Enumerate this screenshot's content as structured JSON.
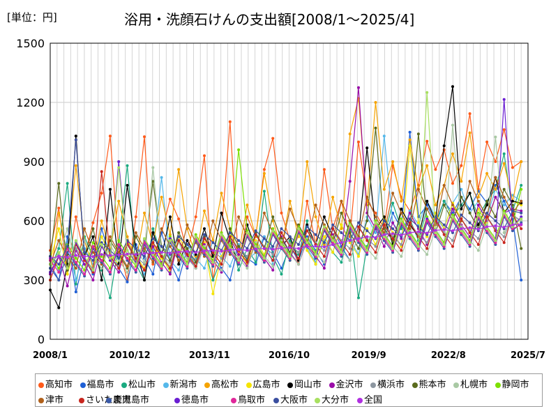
{
  "unit_label": "[単位：円]",
  "chart_data": {
    "type": "line",
    "title": "浴用・洗顔石けんの支出額[2008/1～2025/4]",
    "xlabel": "",
    "ylabel": "",
    "ylim": [
      0,
      1500
    ],
    "yticks": [
      "0",
      "300",
      "600",
      "900",
      "1200",
      "1500"
    ],
    "xticks": [
      "2008/1",
      "2010/12",
      "2013/11",
      "2016/10",
      "2019/9",
      "2022/8",
      "2025/7"
    ],
    "x_range": [
      "2008/1",
      "2025/7"
    ],
    "data_end": "2025/4",
    "grid": true,
    "legend_position": "bottom",
    "series": [
      {
        "name": "高知市",
        "color": "#FF5A1A",
        "values": [
          450,
          665,
          330,
          620,
          420,
          590,
          740,
          1030,
          460,
          300,
          620,
          1026,
          380,
          540,
          710,
          610,
          440,
          620,
          930,
          300,
          540,
          1102,
          380,
          620,
          520,
          860,
          1018,
          640,
          500,
          380,
          700,
          480,
          860,
          560,
          700,
          520,
          1000,
          700,
          640,
          560,
          880,
          720,
          650,
          780,
          1003,
          860,
          960,
          790,
          880,
          1143,
          760,
          1000,
          900,
          1062,
          870,
          900
        ]
      },
      {
        "name": "福島市",
        "color": "#1E5FD6",
        "values": [
          380,
          300,
          520,
          240,
          410,
          330,
          560,
          420,
          360,
          290,
          480,
          410,
          330,
          540,
          390,
          300,
          460,
          370,
          520,
          420,
          360,
          300,
          480,
          410,
          380,
          520,
          440,
          360,
          470,
          400,
          520,
          450,
          380,
          560,
          470,
          400,
          530,
          460,
          590,
          500,
          640,
          560,
          1049,
          620,
          680,
          590,
          700,
          640,
          720,
          660,
          750,
          690,
          780,
          700,
          610,
          300
        ]
      },
      {
        "name": "松山市",
        "color": "#1AAA80",
        "values": [
          360,
          460,
          790,
          280,
          520,
          420,
          350,
          210,
          480,
          880,
          380,
          300,
          560,
          430,
          340,
          500,
          420,
          360,
          470,
          300,
          410,
          520,
          350,
          460,
          390,
          750,
          420,
          330,
          500,
          430,
          600,
          380,
          520,
          440,
          390,
          560,
          210,
          470,
          600,
          520,
          690,
          560,
          610,
          500,
          660,
          580,
          700,
          620,
          680,
          740,
          620,
          700,
          760,
          940,
          650,
          780
        ]
      },
      {
        "name": "新潟市",
        "color": "#55B8EA",
        "values": [
          420,
          350,
          500,
          300,
          460,
          380,
          520,
          440,
          370,
          480,
          400,
          330,
          450,
          820,
          400,
          350,
          480,
          410,
          360,
          500,
          420,
          370,
          480,
          400,
          440,
          520,
          380,
          460,
          410,
          540,
          460,
          390,
          500,
          440,
          580,
          500,
          430,
          620,
          540,
          1030,
          590,
          530,
          650,
          580,
          700,
          620,
          560,
          690,
          760,
          640,
          700,
          620,
          760,
          680,
          730,
          700
        ]
      },
      {
        "name": "高松市",
        "color": "#F5A300",
        "values": [
          300,
          640,
          420,
          880,
          500,
          360,
          600,
          450,
          700,
          520,
          390,
          640,
          480,
          720,
          530,
          860,
          560,
          420,
          650,
          500,
          740,
          560,
          430,
          680,
          520,
          840,
          600,
          460,
          700,
          520,
          900,
          620,
          480,
          720,
          560,
          1040,
          1220,
          680,
          1200,
          760,
          900,
          700,
          1010,
          760,
          880,
          680,
          780,
          940,
          800,
          1046,
          720,
          840,
          760,
          890,
          700,
          900
        ]
      },
      {
        "name": "広島市",
        "color": "#F5E400",
        "values": [
          400,
          560,
          330,
          480,
          410,
          350,
          520,
          430,
          380,
          500,
          420,
          360,
          480,
          410,
          350,
          520,
          440,
          370,
          490,
          230,
          420,
          540,
          450,
          380,
          500,
          430,
          560,
          470,
          400,
          530,
          450,
          380,
          520,
          440,
          580,
          490,
          420,
          560,
          480,
          620,
          540,
          470,
          980,
          590,
          520,
          640,
          560,
          690,
          610,
          540,
          660,
          590,
          720,
          640,
          700,
          680
        ]
      },
      {
        "name": "岡山市",
        "color": "#000000",
        "values": [
          250,
          160,
          380,
          1030,
          420,
          520,
          300,
          760,
          380,
          780,
          460,
          300,
          540,
          420,
          620,
          380,
          500,
          430,
          560,
          420,
          640,
          500,
          380,
          580,
          460,
          400,
          540,
          470,
          520,
          400,
          580,
          480,
          620,
          520,
          450,
          600,
          520,
          970,
          560,
          620,
          480,
          660,
          580,
          520,
          700,
          600,
          980,
          1280,
          660,
          740,
          580,
          680,
          820,
          640,
          700,
          690
        ]
      },
      {
        "name": "金沢市",
        "color": "#9A0CA8",
        "values": [
          330,
          420,
          270,
          450,
          380,
          300,
          470,
          400,
          340,
          490,
          410,
          350,
          470,
          390,
          330,
          500,
          420,
          360,
          480,
          400,
          340,
          510,
          430,
          370,
          490,
          410,
          350,
          520,
          440,
          380,
          500,
          420,
          360,
          530,
          450,
          800,
          1275,
          640,
          560,
          470,
          590,
          510,
          640,
          560,
          480,
          610,
          540,
          660,
          580,
          520,
          680,
          600,
          720,
          640,
          660,
          650
        ]
      },
      {
        "name": "横浜市",
        "color": "#8C96A0",
        "values": [
          380,
          430,
          350,
          460,
          400,
          360,
          470,
          410,
          370,
          480,
          420,
          380,
          490,
          430,
          390,
          500,
          440,
          400,
          510,
          450,
          410,
          520,
          460,
          420,
          530,
          470,
          430,
          540,
          480,
          440,
          550,
          490,
          450,
          560,
          500,
          460,
          570,
          510,
          470,
          580,
          520,
          480,
          590,
          530,
          490,
          600,
          540,
          500,
          610,
          550,
          510,
          620,
          560,
          520,
          630,
          600
        ]
      },
      {
        "name": "熊本市",
        "color": "#5A6B1E",
        "values": [
          400,
          790,
          350,
          480,
          420,
          560,
          380,
          500,
          430,
          360,
          520,
          440,
          800,
          470,
          400,
          540,
          460,
          390,
          520,
          440,
          380,
          560,
          470,
          400,
          540,
          460,
          620,
          510,
          440,
          580,
          500,
          420,
          560,
          480,
          640,
          540,
          460,
          600,
          1070,
          560,
          500,
          640,
          560,
          1040,
          600,
          540,
          680,
          600,
          720,
          640,
          560,
          700,
          620,
          760,
          680,
          460
        ]
      },
      {
        "name": "札幌市",
        "color": "#A9C9A4",
        "values": [
          360,
          420,
          560,
          380,
          500,
          420,
          360,
          480,
          400,
          340,
          460,
          390,
          870,
          430,
          370,
          490,
          410,
          360,
          470,
          400,
          350,
          480,
          410,
          360,
          490,
          420,
          370,
          500,
          430,
          380,
          510,
          440,
          390,
          520,
          450,
          400,
          530,
          460,
          410,
          540,
          470,
          420,
          550,
          480,
          430,
          560,
          490,
          1085,
          570,
          500,
          450,
          580,
          1025,
          540,
          620,
          600
        ]
      },
      {
        "name": "静岡市",
        "color": "#7DE000",
        "values": [
          420,
          360,
          480,
          410,
          350,
          490,
          420,
          360,
          500,
          430,
          370,
          510,
          440,
          380,
          520,
          450,
          390,
          530,
          460,
          400,
          540,
          470,
          960,
          550,
          480,
          420,
          560,
          490,
          430,
          570,
          500,
          440,
          580,
          510,
          450,
          590,
          520,
          460,
          600,
          530,
          470,
          610,
          540,
          480,
          620,
          550,
          490,
          630,
          560,
          500,
          640,
          570,
          510,
          650,
          580,
          760
        ]
      },
      {
        "name": "津市",
        "color": "#B0601A",
        "values": [
          380,
          500,
          420,
          360,
          560,
          440,
          380,
          520,
          440,
          370,
          540,
          460,
          390,
          560,
          470,
          400,
          580,
          490,
          420,
          600,
          500,
          430,
          620,
          520,
          440,
          640,
          540,
          460,
          660,
          560,
          480,
          680,
          580,
          500,
          700,
          600,
          520,
          720,
          620,
          540,
          740,
          640,
          560,
          760,
          660,
          580,
          780,
          680,
          600,
          800,
          700,
          620,
          820,
          720,
          640,
          700
        ]
      },
      {
        "name": "さいたま市",
        "color": "#C8261E",
        "values": [
          300,
          420,
          360,
          480,
          400,
          340,
          850,
          420,
          360,
          480,
          410,
          350,
          490,
          420,
          360,
          500,
          430,
          370,
          510,
          440,
          380,
          520,
          450,
          390,
          530,
          460,
          400,
          540,
          470,
          410,
          550,
          480,
          420,
          560,
          490,
          430,
          570,
          500,
          440,
          580,
          510,
          450,
          590,
          520,
          460,
          600,
          530,
          470,
          610,
          540,
          480,
          620,
          550,
          490,
          630,
          560
        ]
      },
      {
        "name": "鹿児島市",
        "color": "#3A5AA8",
        "values": [
          360,
          300,
          440,
          380,
          320,
          460,
          390,
          330,
          470,
          400,
          340,
          480,
          410,
          350,
          490,
          420,
          360,
          500,
          430,
          370,
          510,
          440,
          380,
          520,
          450,
          390,
          530,
          460,
          400,
          540,
          470,
          410,
          550,
          480,
          420,
          560,
          490,
          430,
          570,
          500,
          440,
          580,
          510,
          450,
          590,
          520,
          460,
          600,
          530,
          470,
          610,
          540,
          480,
          620,
          550,
          590
        ]
      },
      {
        "name": "徳島市",
        "color": "#6A1ED2",
        "values": [
          340,
          420,
          360,
          490,
          410,
          350,
          470,
          400,
          900,
          450,
          390,
          500,
          430,
          370,
          510,
          440,
          380,
          520,
          450,
          390,
          530,
          460,
          400,
          540,
          470,
          410,
          550,
          480,
          420,
          560,
          490,
          430,
          570,
          500,
          440,
          580,
          510,
          450,
          590,
          520,
          460,
          600,
          530,
          470,
          610,
          540,
          480,
          620,
          550,
          490,
          630,
          560,
          500,
          1215,
          570,
          620
        ]
      },
      {
        "name": "鳥取市",
        "color": "#E0279A",
        "values": [
          400,
          340,
          460,
          390,
          330,
          470,
          400,
          340,
          480,
          410,
          350,
          490,
          420,
          360,
          500,
          430,
          370,
          510,
          440,
          380,
          520,
          450,
          390,
          530,
          460,
          400,
          540,
          470,
          410,
          550,
          480,
          420,
          560,
          490,
          430,
          570,
          500,
          440,
          580,
          510,
          450,
          590,
          520,
          460,
          600,
          530,
          470,
          610,
          540,
          480,
          620,
          550,
          490,
          630,
          560,
          580
        ]
      },
      {
        "name": "大阪市",
        "color": "#3B4FA0",
        "values": [
          420,
          380,
          470,
          1010,
          440,
          400,
          490,
          450,
          410,
          500,
          460,
          420,
          510,
          470,
          430,
          520,
          480,
          440,
          530,
          490,
          450,
          540,
          500,
          460,
          550,
          510,
          470,
          560,
          520,
          480,
          570,
          530,
          490,
          580,
          540,
          500,
          590,
          550,
          510,
          600,
          560,
          520,
          610,
          570,
          530,
          620,
          580,
          540,
          630,
          590,
          550,
          640,
          600,
          560,
          650,
          640
        ]
      },
      {
        "name": "大分市",
        "color": "#A8E060",
        "values": [
          380,
          440,
          360,
          500,
          420,
          350,
          480,
          410,
          870,
          450,
          380,
          510,
          430,
          370,
          500,
          440,
          380,
          520,
          450,
          390,
          530,
          460,
          400,
          540,
          470,
          410,
          550,
          480,
          420,
          560,
          490,
          430,
          570,
          500,
          440,
          580,
          510,
          450,
          590,
          520,
          460,
          600,
          530,
          470,
          1250,
          540,
          480,
          620,
          550,
          490,
          630,
          560,
          500,
          640,
          570,
          610
        ]
      },
      {
        "name": "全国",
        "color": "#B030E0",
        "values": [
          410,
          420,
          415,
          425,
          420,
          418,
          430,
          425,
          428,
          432,
          430,
          435,
          438,
          440,
          436,
          442,
          445,
          440,
          448,
          450,
          446,
          452,
          455,
          450,
          458,
          460,
          456,
          462,
          465,
          460,
          470,
          472,
          468,
          480,
          490,
          500,
          510,
          520,
          515,
          530,
          535,
          528,
          540,
          545,
          538,
          552,
          556,
          550,
          560,
          565,
          558,
          570,
          575,
          568,
          580,
          582
        ]
      }
    ]
  }
}
